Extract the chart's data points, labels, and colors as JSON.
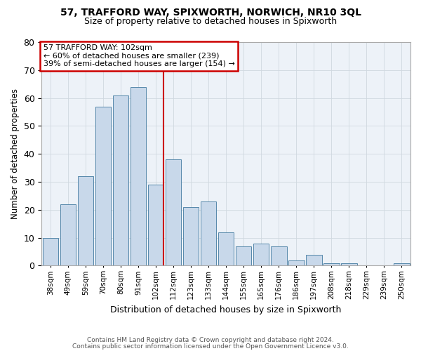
{
  "title1": "57, TRAFFORD WAY, SPIXWORTH, NORWICH, NR10 3QL",
  "title2": "Size of property relative to detached houses in Spixworth",
  "xlabel": "Distribution of detached houses by size in Spixworth",
  "ylabel": "Number of detached properties",
  "categories": [
    "38sqm",
    "49sqm",
    "59sqm",
    "70sqm",
    "80sqm",
    "91sqm",
    "102sqm",
    "112sqm",
    "123sqm",
    "133sqm",
    "144sqm",
    "155sqm",
    "165sqm",
    "176sqm",
    "186sqm",
    "197sqm",
    "208sqm",
    "218sqm",
    "229sqm",
    "239sqm",
    "250sqm"
  ],
  "bar_values": [
    10,
    22,
    32,
    57,
    61,
    64,
    29,
    38,
    21,
    23,
    12,
    7,
    8,
    7,
    2,
    4,
    1,
    1,
    0,
    0,
    1
  ],
  "bar_color": "#c8d8ea",
  "bar_edge_color": "#5588aa",
  "reference_line_x": 6.425,
  "reference_line_color": "#cc0000",
  "annotation_line1": "57 TRAFFORD WAY: 102sqm",
  "annotation_line2": "← 60% of detached houses are smaller (239)",
  "annotation_line3": "39% of semi-detached houses are larger (154) →",
  "annotation_box_facecolor": "white",
  "annotation_box_edgecolor": "#cc0000",
  "ylim": [
    0,
    80
  ],
  "yticks": [
    0,
    10,
    20,
    30,
    40,
    50,
    60,
    70,
    80
  ],
  "grid_color": "#d0d8e0",
  "plot_bg_color": "#edf2f8",
  "footer1": "Contains HM Land Registry data © Crown copyright and database right 2024.",
  "footer2": "Contains public sector information licensed under the Open Government Licence v3.0."
}
